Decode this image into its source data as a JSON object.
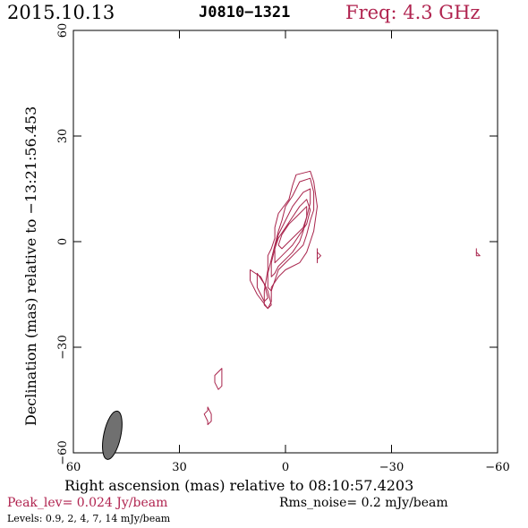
{
  "header": {
    "date": "2015.10.13",
    "source": "J0810−1321",
    "frequency": "Freq: 4.3 GHz"
  },
  "footer": {
    "peak": "Peak_lev=  0.024 Jy/beam",
    "rms": "Rms_noise=   0.2 mJy/beam",
    "levels_prefix": "Levels:",
    "levels": [
      "0.9,",
      "2,",
      "4,",
      "7,",
      "14 mJy/beam"
    ]
  },
  "colors": {
    "contour": "#a8234b",
    "beam": "#707070",
    "accent_text": "#b0234f"
  },
  "chart_data": {
    "type": "contour",
    "xlabel": "Right ascension (mas) relative to 08:10:57.4203",
    "ylabel": "Declination (mas) relative to −13:21:56.453",
    "xlim": [
      60,
      -60
    ],
    "ylim": [
      -60,
      60
    ],
    "x_ticks": [
      60,
      30,
      0,
      -30,
      -60
    ],
    "x_tick_labels": [
      "60",
      "30",
      "0",
      "−30",
      "−60"
    ],
    "y_ticks": [
      -60,
      -30,
      0,
      30,
      60
    ],
    "y_tick_labels": [
      "−60",
      "−30",
      "0",
      "30",
      "60"
    ],
    "contour_levels_mJy": [
      0.9,
      2,
      4,
      7,
      14
    ],
    "peak_Jy_per_beam": 0.024,
    "beam": {
      "x": 49,
      "y": -55,
      "major": 7,
      "minor": 2.4,
      "pa_deg": 12
    },
    "contours": [
      {
        "name": "core-0.9",
        "points": [
          [
            -3,
            19
          ],
          [
            -7,
            20
          ],
          [
            -8,
            17
          ],
          [
            -9,
            10
          ],
          [
            -8,
            3
          ],
          [
            -7,
            0
          ],
          [
            -6,
            -3
          ],
          [
            -4,
            -6
          ],
          [
            0,
            -8
          ],
          [
            2,
            -10
          ],
          [
            4,
            -13
          ],
          [
            4,
            -17
          ],
          [
            5,
            -19
          ],
          [
            6,
            -18
          ],
          [
            6,
            -14
          ],
          [
            5,
            -8
          ],
          [
            5,
            -4
          ],
          [
            4,
            -2
          ],
          [
            3,
            1
          ],
          [
            3,
            4
          ],
          [
            2,
            8
          ],
          [
            -1,
            12
          ],
          [
            -2,
            16
          ],
          [
            -3,
            19
          ]
        ]
      },
      {
        "name": "core-2",
        "points": [
          [
            -4,
            17
          ],
          [
            -7,
            18
          ],
          [
            -8,
            14
          ],
          [
            -8,
            9
          ],
          [
            -7,
            6
          ],
          [
            -6,
            2
          ],
          [
            -5,
            -1
          ],
          [
            -3,
            -3
          ],
          [
            0,
            -6
          ],
          [
            2,
            -8
          ],
          [
            3,
            -11
          ],
          [
            4,
            -14
          ],
          [
            5,
            -13
          ],
          [
            5,
            -9
          ],
          [
            4,
            -5
          ],
          [
            3,
            -1
          ],
          [
            2,
            3
          ],
          [
            1,
            6
          ],
          [
            0,
            10
          ],
          [
            -2,
            13
          ],
          [
            -4,
            17
          ]
        ]
      },
      {
        "name": "core-4",
        "points": [
          [
            -5,
            14
          ],
          [
            -7,
            15
          ],
          [
            -7,
            11
          ],
          [
            -6,
            7
          ],
          [
            -5,
            3
          ],
          [
            -4,
            0
          ],
          [
            -2,
            -3
          ],
          [
            0,
            -5
          ],
          [
            2,
            -7
          ],
          [
            3,
            -9
          ],
          [
            4,
            -10
          ],
          [
            4,
            -6
          ],
          [
            3,
            -2
          ],
          [
            2,
            2
          ],
          [
            0,
            6
          ],
          [
            -2,
            10
          ],
          [
            -5,
            14
          ]
        ]
      },
      {
        "name": "core-7",
        "points": [
          [
            -6,
            12
          ],
          [
            -7,
            9
          ],
          [
            -6,
            5
          ],
          [
            -4,
            2
          ],
          [
            -2,
            -1
          ],
          [
            0,
            -3
          ],
          [
            2,
            -5
          ],
          [
            3,
            -6
          ],
          [
            3,
            -2
          ],
          [
            2,
            1
          ],
          [
            0,
            4
          ],
          [
            -2,
            7
          ],
          [
            -4,
            10
          ],
          [
            -6,
            12
          ]
        ]
      },
      {
        "name": "core-14",
        "points": [
          [
            -6,
            10
          ],
          [
            -6,
            7
          ],
          [
            -5,
            4
          ],
          [
            -3,
            2
          ],
          [
            -1,
            0
          ],
          [
            1,
            -2
          ],
          [
            2,
            -1
          ],
          [
            1,
            2
          ],
          [
            -1,
            5
          ],
          [
            -3,
            7
          ],
          [
            -6,
            10
          ]
        ]
      },
      {
        "name": "knot-0.9",
        "points": [
          [
            10,
            -8
          ],
          [
            7,
            -10
          ],
          [
            5,
            -14
          ],
          [
            4,
            -18
          ],
          [
            5,
            -19
          ],
          [
            8,
            -15
          ],
          [
            10,
            -11
          ],
          [
            10,
            -8
          ]
        ]
      },
      {
        "name": "knot-2",
        "points": [
          [
            8,
            -9
          ],
          [
            6,
            -12
          ],
          [
            5,
            -16
          ],
          [
            6,
            -17
          ],
          [
            8,
            -13
          ],
          [
            8,
            -9
          ]
        ]
      },
      {
        "name": "comp-e1",
        "points": [
          [
            18,
            -36
          ],
          [
            19,
            -37
          ],
          [
            20,
            -38
          ],
          [
            20,
            -40
          ],
          [
            19,
            -42
          ],
          [
            18,
            -41
          ],
          [
            18,
            -39
          ],
          [
            18,
            -36
          ]
        ]
      },
      {
        "name": "comp-e2",
        "points": [
          [
            22,
            -47
          ],
          [
            22,
            -48
          ],
          [
            23,
            -49
          ],
          [
            22,
            -51
          ],
          [
            22,
            -52
          ],
          [
            21,
            -51
          ],
          [
            21,
            -49
          ],
          [
            22,
            -47
          ]
        ]
      },
      {
        "name": "comp-w1",
        "points": [
          [
            -9,
            -2
          ],
          [
            -9,
            -3
          ],
          [
            -10,
            -4
          ],
          [
            -9,
            -5
          ],
          [
            -9,
            -6
          ],
          [
            -9,
            -4
          ],
          [
            -9,
            -2
          ]
        ]
      },
      {
        "name": "comp-w2",
        "points": [
          [
            -54,
            -2
          ],
          [
            -54,
            -3
          ],
          [
            -55,
            -4
          ],
          [
            -54,
            -4
          ],
          [
            -54,
            -2
          ]
        ]
      }
    ]
  }
}
